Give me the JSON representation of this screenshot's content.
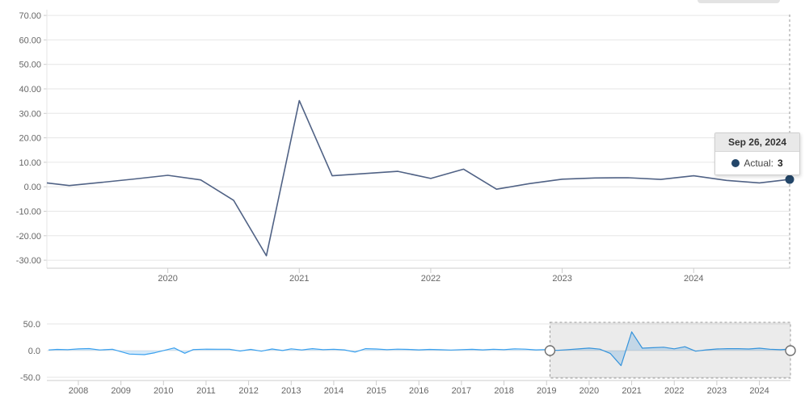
{
  "tooltip": {
    "date": "Sep 26, 2024",
    "series_label": "Actual:",
    "value": "3"
  },
  "colors": {
    "main_line": "#506285",
    "marker": "#234669",
    "nav_line": "#3aa0ee",
    "nav_fill": "rgba(58,160,238,0.22)",
    "grid": "#e6e6e6",
    "axis": "#cccccc",
    "label": "#666666",
    "selection_fill": "rgba(0,0,0,0.08)",
    "selection_border": "#999999",
    "crosshair": "#999999",
    "tooltip_header_bg": "#e9e9e9"
  },
  "chart_data": [
    {
      "id": "main",
      "type": "line",
      "title": "",
      "xlabel": "",
      "ylabel": "",
      "legend": "none",
      "grid": true,
      "xlim": [
        2019.08,
        2024.73
      ],
      "ylim": [
        -33,
        74
      ],
      "x_ticks": [
        "2020",
        "2021",
        "2022",
        "2023",
        "2024"
      ],
      "y_ticks": [
        "70.00",
        "60.00",
        "50.00",
        "40.00",
        "30.00",
        "20.00",
        "10.00",
        "0.00",
        "-10.00",
        "-20.00",
        "-30.00"
      ],
      "y_tick_values": [
        70,
        60,
        50,
        40,
        30,
        20,
        10,
        0,
        -10,
        -20,
        -30
      ],
      "series": [
        {
          "name": "Actual",
          "points": [
            [
              2019.08,
              1.6
            ],
            [
              2019.25,
              0.5
            ],
            [
              2019.5,
              1.8
            ],
            [
              2019.75,
              3.2
            ],
            [
              2020.0,
              4.7
            ],
            [
              2020.25,
              2.8
            ],
            [
              2020.5,
              -5.5
            ],
            [
              2020.75,
              -28.2
            ],
            [
              2021.0,
              35.2
            ],
            [
              2021.25,
              4.5
            ],
            [
              2021.5,
              5.4
            ],
            [
              2021.75,
              6.3
            ],
            [
              2022.0,
              3.4
            ],
            [
              2022.25,
              7.2
            ],
            [
              2022.5,
              -1.0
            ],
            [
              2022.75,
              1.3
            ],
            [
              2023.0,
              3.1
            ],
            [
              2023.25,
              3.6
            ],
            [
              2023.5,
              3.7
            ],
            [
              2023.75,
              3.0
            ],
            [
              2024.0,
              4.5
            ],
            [
              2024.25,
              2.6
            ],
            [
              2024.5,
              1.6
            ],
            [
              2024.73,
              3.0
            ]
          ]
        }
      ],
      "end_marker": {
        "t": 2024.73,
        "v": 3.0
      },
      "crosshair_t": 2024.73
    },
    {
      "id": "navigator",
      "type": "area",
      "title": "",
      "xlabel": "",
      "ylabel": "",
      "legend": "none",
      "grid": true,
      "xlim": [
        2007.26,
        2024.73
      ],
      "ylim": [
        -53,
        53
      ],
      "x_ticks": [
        "2008",
        "2009",
        "2010",
        "2011",
        "2012",
        "2013",
        "2014",
        "2015",
        "2016",
        "2017",
        "2018",
        "2019",
        "2020",
        "2021",
        "2022",
        "2023",
        "2024"
      ],
      "y_ticks": [
        "50.0",
        "0.0",
        "-50.0"
      ],
      "y_tick_values": [
        50,
        0,
        -50
      ],
      "selection": {
        "start": 2019.08,
        "end": 2024.73
      },
      "series": [
        {
          "name": "Actual",
          "points": [
            [
              2007.3,
              1.2
            ],
            [
              2007.5,
              2.2
            ],
            [
              2007.75,
              1.8
            ],
            [
              2008.0,
              3.2
            ],
            [
              2008.25,
              3.8
            ],
            [
              2008.5,
              1.2
            ],
            [
              2008.8,
              2.5
            ],
            [
              2009.0,
              -2.0
            ],
            [
              2009.2,
              -6.5
            ],
            [
              2009.55,
              -7.5
            ],
            [
              2009.8,
              -4.0
            ],
            [
              2010.05,
              1.0
            ],
            [
              2010.25,
              5.0
            ],
            [
              2010.5,
              -5.0
            ],
            [
              2010.7,
              2.0
            ],
            [
              2011.0,
              2.8
            ],
            [
              2011.3,
              2.5
            ],
            [
              2011.55,
              2.5
            ],
            [
              2011.8,
              -0.8
            ],
            [
              2012.05,
              2.2
            ],
            [
              2012.3,
              -1.0
            ],
            [
              2012.55,
              3.0
            ],
            [
              2012.8,
              0.2
            ],
            [
              2013.0,
              3.3
            ],
            [
              2013.25,
              1.2
            ],
            [
              2013.5,
              3.6
            ],
            [
              2013.75,
              1.8
            ],
            [
              2014.0,
              2.6
            ],
            [
              2014.25,
              1.4
            ],
            [
              2014.5,
              -2.8
            ],
            [
              2014.75,
              3.6
            ],
            [
              2015.0,
              3.0
            ],
            [
              2015.25,
              1.8
            ],
            [
              2015.5,
              2.8
            ],
            [
              2015.75,
              2.2
            ],
            [
              2016.0,
              1.4
            ],
            [
              2016.25,
              2.2
            ],
            [
              2016.5,
              1.6
            ],
            [
              2016.75,
              1.0
            ],
            [
              2017.0,
              1.8
            ],
            [
              2017.25,
              2.4
            ],
            [
              2017.5,
              1.4
            ],
            [
              2017.75,
              2.6
            ],
            [
              2018.0,
              1.8
            ],
            [
              2018.25,
              3.4
            ],
            [
              2018.5,
              2.8
            ],
            [
              2018.75,
              1.4
            ],
            [
              2019.0,
              2.0
            ],
            [
              2019.25,
              0.5
            ],
            [
              2019.5,
              1.8
            ],
            [
              2019.75,
              3.2
            ],
            [
              2020.0,
              4.7
            ],
            [
              2020.25,
              2.8
            ],
            [
              2020.5,
              -5.5
            ],
            [
              2020.75,
              -28.2
            ],
            [
              2021.0,
              35.2
            ],
            [
              2021.25,
              4.5
            ],
            [
              2021.5,
              5.4
            ],
            [
              2021.75,
              6.3
            ],
            [
              2022.0,
              3.4
            ],
            [
              2022.25,
              7.2
            ],
            [
              2022.5,
              -1.0
            ],
            [
              2022.75,
              1.3
            ],
            [
              2023.0,
              3.1
            ],
            [
              2023.25,
              3.6
            ],
            [
              2023.5,
              3.7
            ],
            [
              2023.75,
              3.0
            ],
            [
              2024.0,
              4.5
            ],
            [
              2024.25,
              2.6
            ],
            [
              2024.5,
              1.6
            ],
            [
              2024.73,
              3.0
            ]
          ]
        }
      ]
    }
  ]
}
